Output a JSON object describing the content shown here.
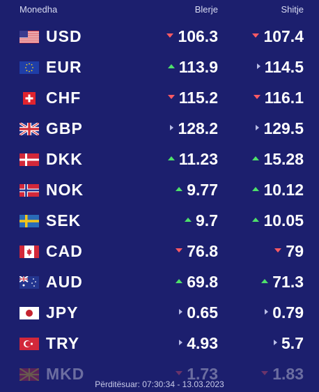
{
  "header": {
    "currency": "Monedha",
    "buy": "Blerje",
    "sell": "Shitje"
  },
  "rates": [
    {
      "code": "USD",
      "buy": "106.3",
      "buy_trend": "down",
      "sell": "107.4",
      "sell_trend": "down",
      "flag": "us-flag-icon"
    },
    {
      "code": "EUR",
      "buy": "113.9",
      "buy_trend": "up",
      "sell": "114.5",
      "sell_trend": "same",
      "flag": "eu-flag-icon"
    },
    {
      "code": "CHF",
      "buy": "115.2",
      "buy_trend": "down",
      "sell": "116.1",
      "sell_trend": "down",
      "flag": "ch-flag-icon"
    },
    {
      "code": "GBP",
      "buy": "128.2",
      "buy_trend": "same",
      "sell": "129.5",
      "sell_trend": "same",
      "flag": "gb-flag-icon"
    },
    {
      "code": "DKK",
      "buy": "11.23",
      "buy_trend": "up",
      "sell": "15.28",
      "sell_trend": "up",
      "flag": "dk-flag-icon"
    },
    {
      "code": "NOK",
      "buy": "9.77",
      "buy_trend": "up",
      "sell": "10.12",
      "sell_trend": "up",
      "flag": "no-flag-icon"
    },
    {
      "code": "SEK",
      "buy": "9.7",
      "buy_trend": "up",
      "sell": "10.05",
      "sell_trend": "up",
      "flag": "se-flag-icon"
    },
    {
      "code": "CAD",
      "buy": "76.8",
      "buy_trend": "down",
      "sell": "79",
      "sell_trend": "down",
      "flag": "ca-flag-icon"
    },
    {
      "code": "AUD",
      "buy": "69.8",
      "buy_trend": "up",
      "sell": "71.3",
      "sell_trend": "up",
      "flag": "au-flag-icon"
    },
    {
      "code": "JPY",
      "buy": "0.65",
      "buy_trend": "same",
      "sell": "0.79",
      "sell_trend": "same",
      "flag": "jp-flag-icon"
    },
    {
      "code": "TRY",
      "buy": "4.93",
      "buy_trend": "same",
      "sell": "5.7",
      "sell_trend": "same",
      "flag": "tr-flag-icon"
    },
    {
      "code": "MKD",
      "buy": "1.73",
      "buy_trend": "down",
      "sell": "1.83",
      "sell_trend": "down",
      "flag": "mk-flag-icon"
    }
  ],
  "footer": {
    "updated": "Përditësuar: 07:30:34 - 13.03.2023"
  }
}
